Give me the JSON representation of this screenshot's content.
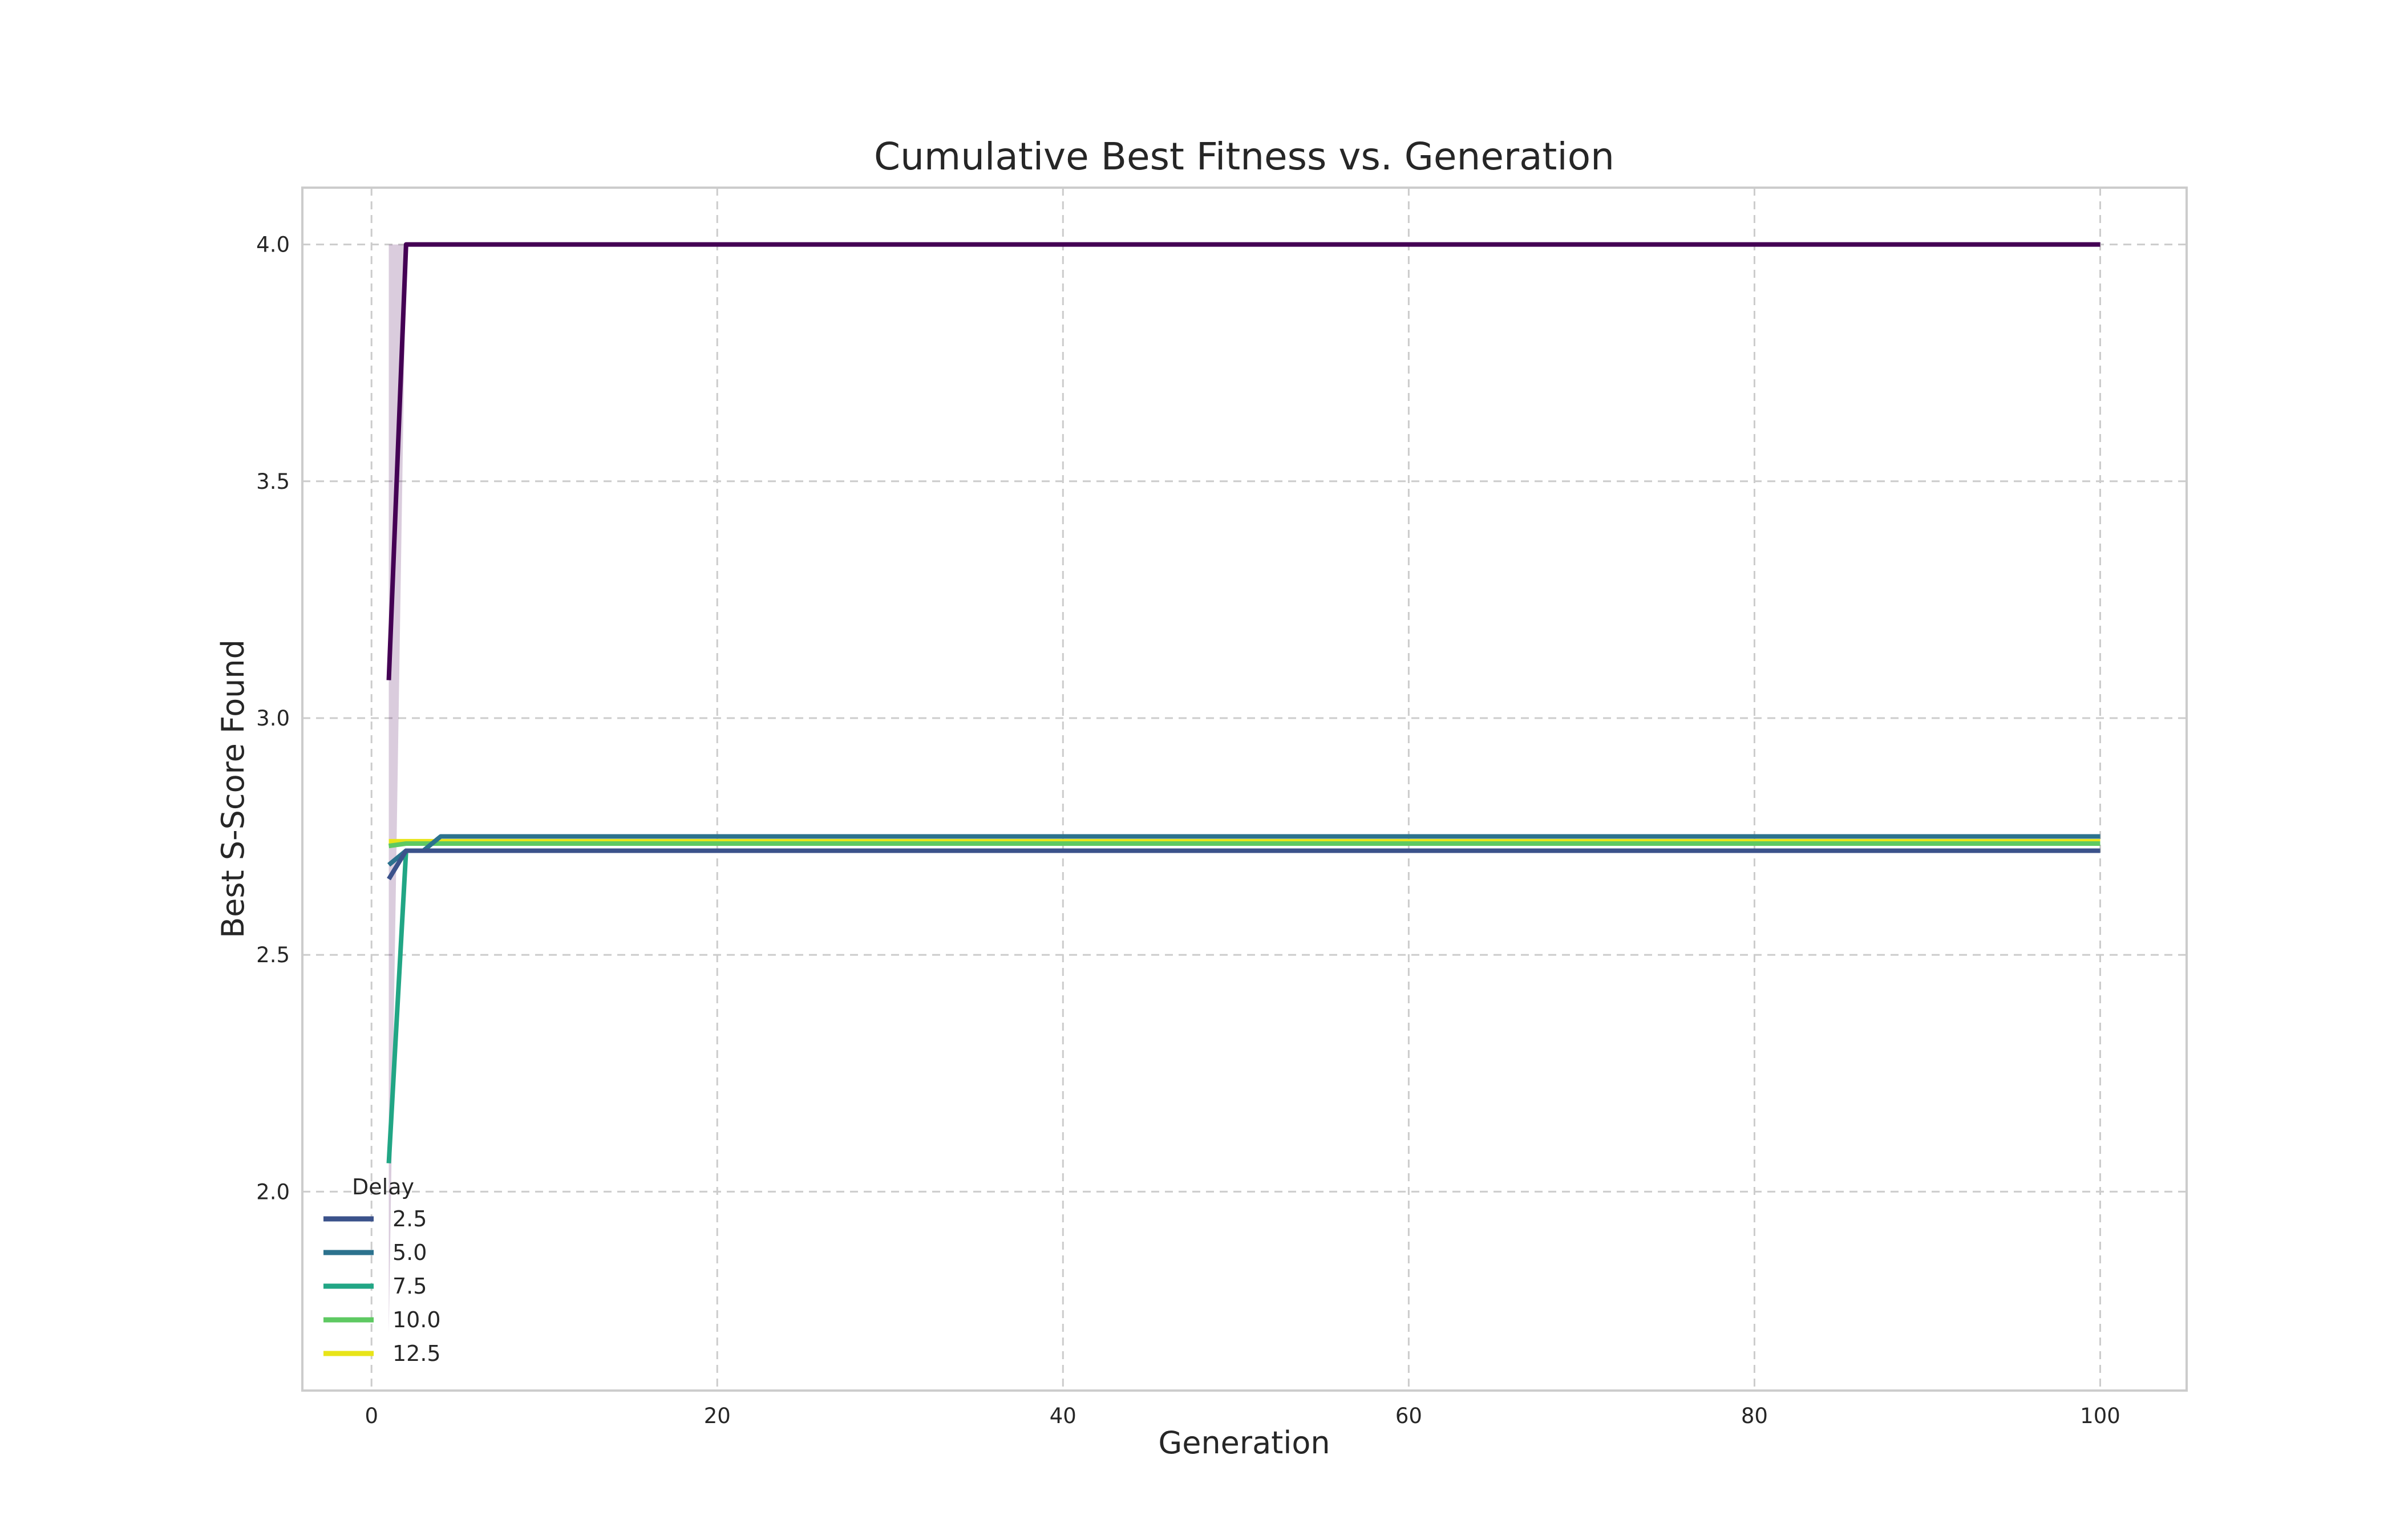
{
  "chart_data": {
    "type": "line",
    "title": "Cumulative Best Fitness vs. Generation",
    "xlabel": "Generation",
    "ylabel": "Best S-Score Found",
    "xlim": [
      -4,
      105
    ],
    "ylim": [
      1.58,
      4.12
    ],
    "xticks": [
      0,
      20,
      40,
      60,
      80,
      100
    ],
    "yticks": [
      2.0,
      2.5,
      3.0,
      3.5,
      4.0
    ],
    "xtick_labels": [
      "0",
      "20",
      "40",
      "60",
      "80",
      "100"
    ],
    "ytick_labels": [
      "2.0",
      "2.5",
      "3.0",
      "3.5",
      "4.0"
    ],
    "grid": true,
    "legend": {
      "title": "Delay",
      "position": "lower-left"
    },
    "series": [
      {
        "name": "",
        "color": "#440154",
        "points": [
          [
            1,
            3.08
          ],
          [
            2,
            4.0
          ],
          [
            100,
            4.0
          ]
        ],
        "band": {
          "x": [
            1,
            2,
            100
          ],
          "lower": [
            1.7,
            4.0,
            4.0
          ],
          "upper": [
            4.0,
            4.0,
            4.0
          ]
        }
      },
      {
        "name": "2.5",
        "color": "#3b528b",
        "points": [
          [
            1,
            2.66
          ],
          [
            2,
            2.72
          ],
          [
            100,
            2.72
          ]
        ]
      },
      {
        "name": "5.0",
        "color": "#2c728e",
        "points": [
          [
            1,
            2.69
          ],
          [
            2,
            2.72
          ],
          [
            3,
            2.72
          ],
          [
            4,
            2.75
          ],
          [
            100,
            2.75
          ]
        ]
      },
      {
        "name": "7.5",
        "color": "#21a685",
        "points": [
          [
            1,
            2.06
          ],
          [
            2,
            2.72
          ],
          [
            100,
            2.72
          ]
        ]
      },
      {
        "name": "10.0",
        "color": "#5ec962",
        "points": [
          [
            1,
            2.73
          ],
          [
            2,
            2.735
          ],
          [
            100,
            2.735
          ]
        ]
      },
      {
        "name": "12.5",
        "color": "#e8e419",
        "points": [
          [
            1,
            2.74
          ],
          [
            100,
            2.74
          ]
        ]
      }
    ]
  }
}
